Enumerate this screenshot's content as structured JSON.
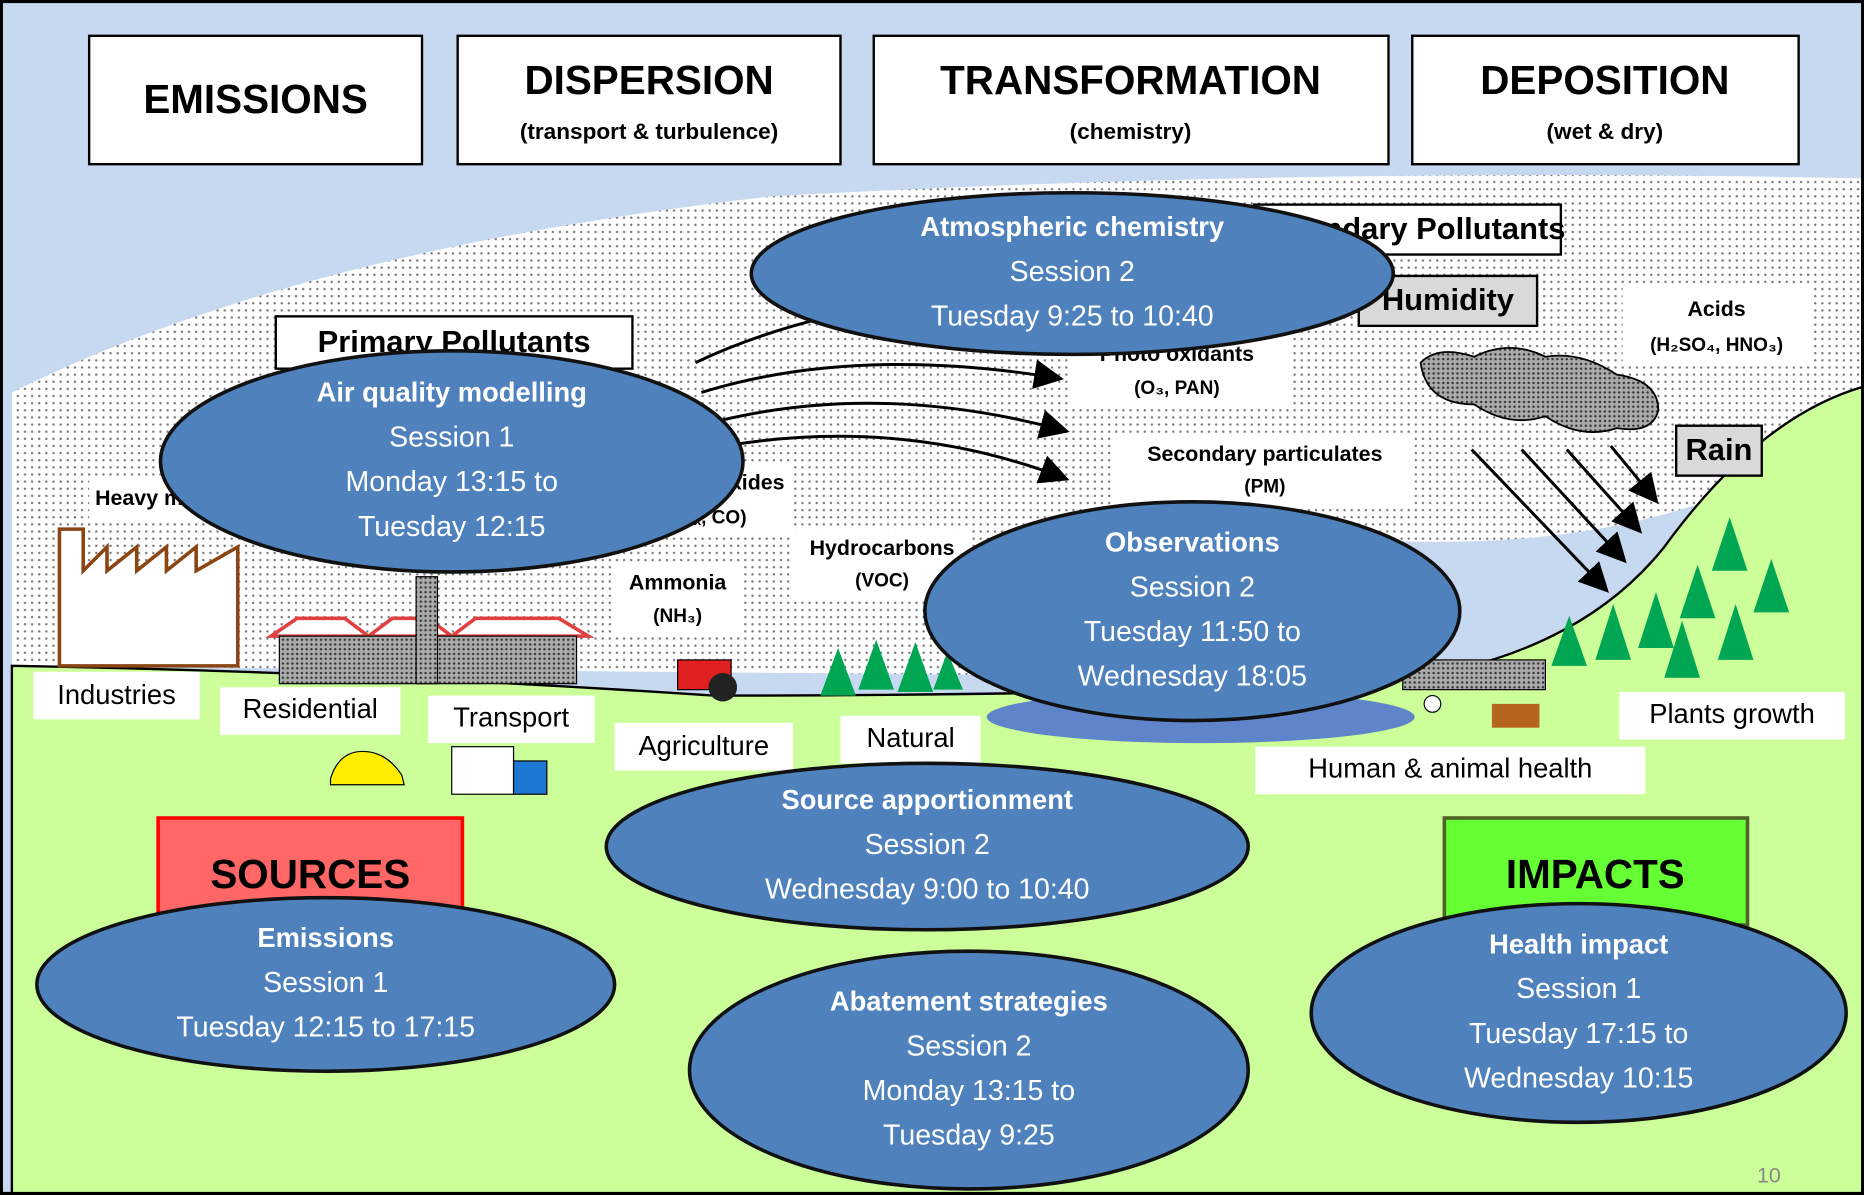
{
  "header": {
    "boxes": [
      {
        "title": "EMISSIONS"
      },
      {
        "title": "DISPERSION",
        "subtitle": "(transport & turbulence)"
      },
      {
        "title": "TRANSFORMATION",
        "subtitle": "(chemistry)"
      },
      {
        "title": "DEPOSITION",
        "subtitle": "(wet & dry)"
      }
    ]
  },
  "atmosphere": {
    "primary": "Primary Pollutants",
    "secondary": "Secondary Pollutants",
    "humidity": "Humidity",
    "rain": "Rain",
    "acids": [
      "Acids",
      "(H₂SO₄, HNO₃)"
    ],
    "photo_oxidants": [
      "Photo oxidants",
      "(O₃, PAN)"
    ],
    "secondary_particulates": [
      "Secondary particulates",
      "(PM)"
    ],
    "heavy_metals": "Heavy metals",
    "nitrogen_oxides": [
      "Nitrogen oxides",
      "(NOₓ, CO)"
    ],
    "hydrocarbons": [
      "Hydrocarbons",
      "(VOC)"
    ],
    "ammonia": [
      "Ammonia",
      "(NH₃)"
    ]
  },
  "ground_labels": [
    "Industries",
    "Residential",
    "Transport",
    "Agriculture",
    "Natural",
    "Human & animal health",
    "Plants growth"
  ],
  "categories": {
    "sources": "SOURCES",
    "impacts": "IMPACTS"
  },
  "sessions": [
    {
      "title": "Atmospheric chemistry",
      "session": "Session 2",
      "time": [
        "Tuesday 9:25 to 10:40"
      ]
    },
    {
      "title": "Air quality modelling",
      "session": "Session 1",
      "time": [
        "Monday 13:15 to",
        "Tuesday 12:15"
      ]
    },
    {
      "title": "Observations",
      "session": "Session 2",
      "time": [
        "Tuesday 11:50 to",
        "Wednesday 18:05"
      ]
    },
    {
      "title": "Source apportionment",
      "session": "Session 2",
      "time": [
        "Wednesday 9:00 to 10:40"
      ]
    },
    {
      "title": "Emissions",
      "session": "Session 1",
      "time": [
        "Tuesday 12:15 to 17:15"
      ]
    },
    {
      "title": "Abatement strategies",
      "session": "Session 2",
      "time": [
        "Monday 13:15 to",
        "Tuesday 9:25"
      ]
    },
    {
      "title": "Health impact",
      "session": "Session 1",
      "time": [
        "Tuesday 17:15 to",
        "Wednesday 10:15"
      ]
    }
  ],
  "page_number": "10"
}
